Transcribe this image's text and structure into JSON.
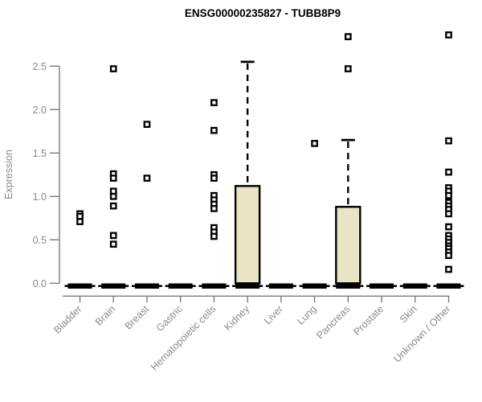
{
  "chart_data": {
    "type": "boxplot",
    "title": "ENSG00000235827 - TUBB8P9",
    "ylabel": "Expression",
    "xlabel": "",
    "ylim": [
      0,
      2.9
    ],
    "yticks": [
      "0.0",
      "0.5",
      "1.0",
      "1.5",
      "2.0",
      "2.5"
    ],
    "ytick_values": [
      0.0,
      0.5,
      1.0,
      1.5,
      2.0,
      2.5
    ],
    "grid": false,
    "legend": "none",
    "categories": [
      "Bladder",
      "Brain",
      "Breast",
      "Gastric",
      "Hematopoietic cells",
      "Kidney",
      "Liver",
      "Lung",
      "Pancreas",
      "Prostate",
      "Skin",
      "Unknown / Other"
    ],
    "boxes": [
      {
        "category": "Bladder",
        "q1": 0,
        "median": 0,
        "q3": 0,
        "whisker_low": 0,
        "whisker_high": 0,
        "outliers": [
          0.8,
          0.77,
          0.71
        ]
      },
      {
        "category": "Brain",
        "q1": 0,
        "median": 0,
        "q3": 0,
        "whisker_low": 0,
        "whisker_high": 0,
        "outliers": [
          2.47,
          1.26,
          1.21,
          1.06,
          1.0,
          0.89,
          0.55,
          0.45
        ]
      },
      {
        "category": "Breast",
        "q1": 0,
        "median": 0,
        "q3": 0,
        "whisker_low": 0,
        "whisker_high": 0,
        "outliers": [
          1.83,
          1.21
        ]
      },
      {
        "category": "Gastric",
        "q1": 0,
        "median": 0,
        "q3": 0,
        "whisker_low": 0,
        "whisker_high": 0,
        "outliers": []
      },
      {
        "category": "Hematopoietic cells",
        "q1": 0,
        "median": 0,
        "q3": 0,
        "whisker_low": 0,
        "whisker_high": 0,
        "outliers": [
          2.08,
          1.76,
          1.25,
          1.21,
          1.01,
          0.96,
          0.91,
          0.86,
          0.64,
          0.59,
          0.54
        ]
      },
      {
        "category": "Kidney",
        "q1": 0,
        "median": 0,
        "q3": 1.12,
        "whisker_low": 0,
        "whisker_high": 2.55,
        "outliers": []
      },
      {
        "category": "Liver",
        "q1": 0,
        "median": 0,
        "q3": 0,
        "whisker_low": 0,
        "whisker_high": 0,
        "outliers": []
      },
      {
        "category": "Lung",
        "q1": 0,
        "median": 0,
        "q3": 0,
        "whisker_low": 0,
        "whisker_high": 0,
        "outliers": [
          1.61
        ]
      },
      {
        "category": "Pancreas",
        "q1": 0,
        "median": 0,
        "q3": 0.88,
        "whisker_low": 0,
        "whisker_high": 1.65,
        "outliers": [
          2.84,
          2.47
        ]
      },
      {
        "category": "Prostate",
        "q1": 0,
        "median": 0,
        "q3": 0,
        "whisker_low": 0,
        "whisker_high": 0,
        "outliers": []
      },
      {
        "category": "Skin",
        "q1": 0,
        "median": 0,
        "q3": 0,
        "whisker_low": 0,
        "whisker_high": 0,
        "outliers": []
      },
      {
        "category": "Unknown / Other",
        "q1": 0,
        "median": 0,
        "q3": 0,
        "whisker_low": 0,
        "whisker_high": 0,
        "outliers": [
          2.86,
          1.64,
          1.28,
          1.1,
          1.06,
          1.01,
          0.93,
          0.89,
          0.85,
          0.8,
          0.65,
          0.55,
          0.51,
          0.47,
          0.43,
          0.4,
          0.36,
          0.32,
          0.16
        ]
      }
    ],
    "colors": {
      "box_fill": "#EAE3C5",
      "box_border": "#000000",
      "outlier_fill": "#FFFFFF",
      "outlier_border": "#000000",
      "axis_line": "#7A7A7A",
      "tick_label": "#8A8A8A",
      "title": "#000000"
    }
  }
}
